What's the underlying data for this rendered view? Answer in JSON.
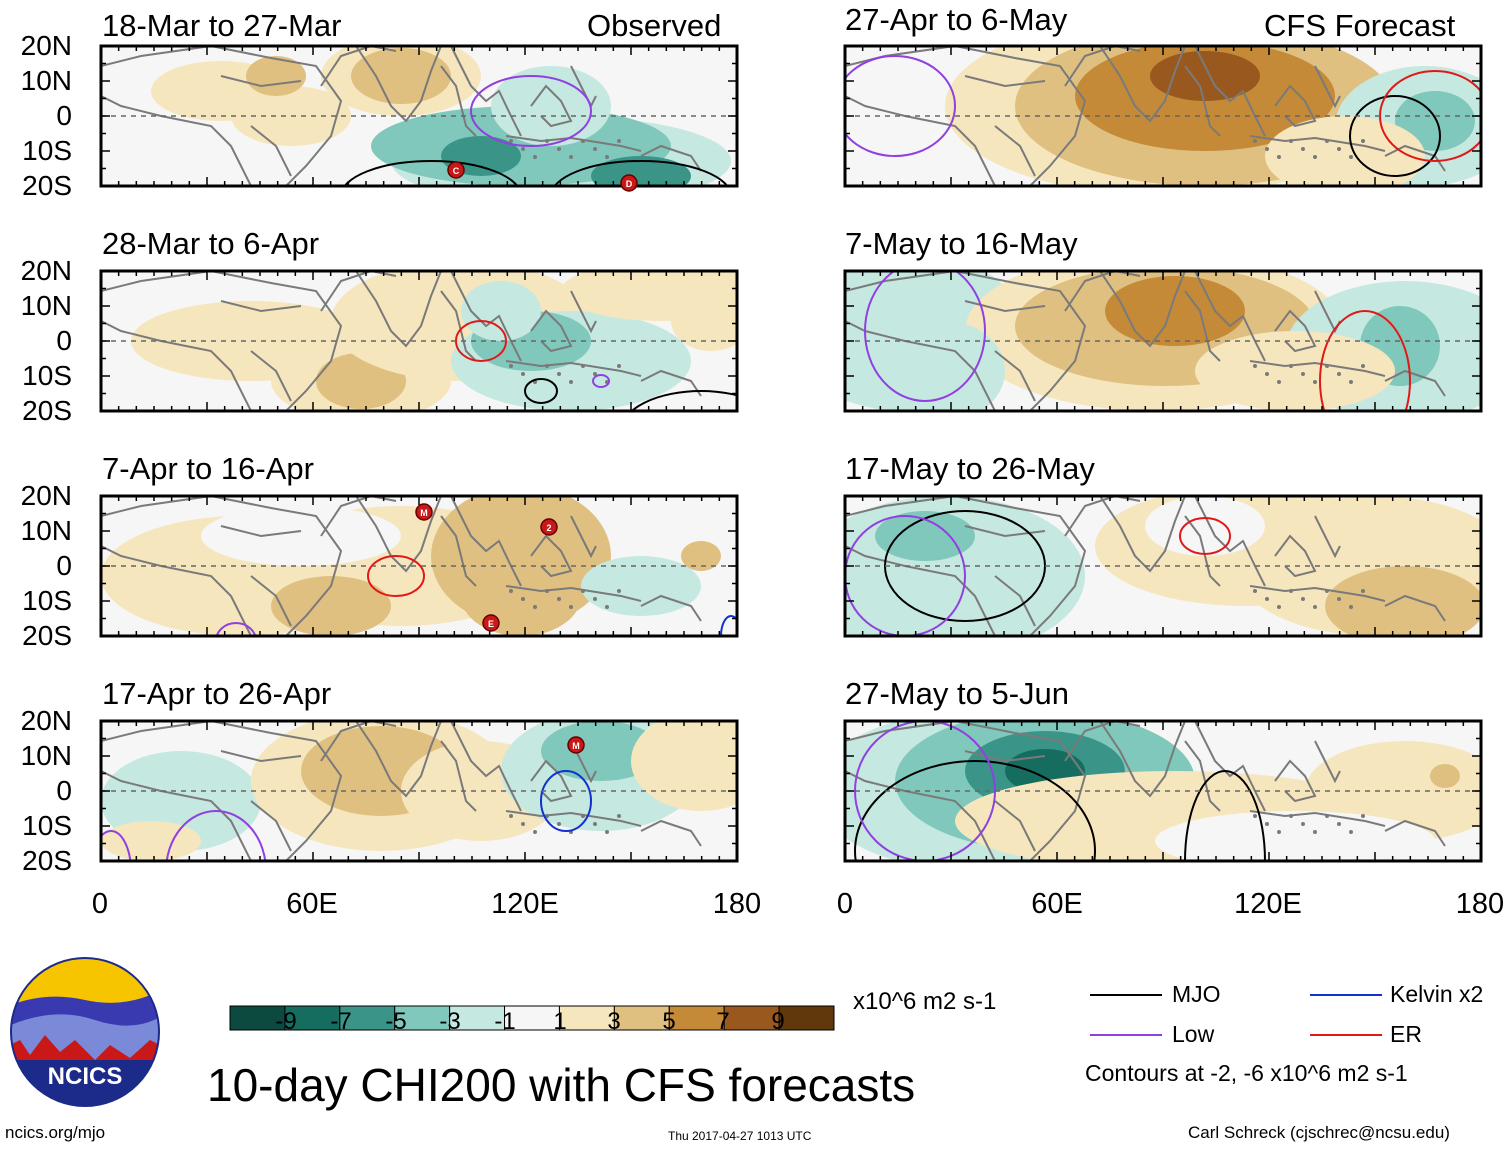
{
  "figure_title": "10-day CHI200 with CFS forecasts",
  "panel_headers": {
    "observed": "Observed",
    "forecast": "CFS Forecast"
  },
  "chart_data": {
    "type": "map",
    "variable": "CHI200 10-day mean",
    "units": "x10^6 m2 s-1",
    "lat_ticks": [
      "20N",
      "10N",
      "0",
      "10S",
      "20S"
    ],
    "lon_ticks": [
      "0",
      "60E",
      "120E",
      "180"
    ],
    "colorbar": {
      "labels": [
        "-9",
        "-7",
        "-5",
        "-3",
        "-1",
        "1",
        "3",
        "5",
        "7",
        "9"
      ],
      "colors": [
        "#0c4a40",
        "#156d60",
        "#3a9488",
        "#80c8bb",
        "#c5e8e1",
        "#f6f6f6",
        "#f6e6be",
        "#e0c080",
        "#c48a38",
        "#99581e",
        "#61380c"
      ]
    },
    "panels": [
      {
        "period": "18-Mar to 27-Mar",
        "source": "Observed"
      },
      {
        "period": "28-Mar to 6-Apr",
        "source": "Observed"
      },
      {
        "period": "7-Apr to 16-Apr",
        "source": "Observed"
      },
      {
        "period": "17-Apr to 26-Apr",
        "source": "Observed"
      },
      {
        "period": "27-Apr to 6-May",
        "source": "CFS Forecast"
      },
      {
        "period": "7-May to 16-May",
        "source": "CFS Forecast"
      },
      {
        "period": "17-May to 26-May",
        "source": "CFS Forecast"
      },
      {
        "period": "27-May to 5-Jun",
        "source": "CFS Forecast"
      }
    ],
    "legend": [
      {
        "label": "MJO",
        "color": "#000000"
      },
      {
        "label": "Kelvin x2",
        "color": "#1030d0"
      },
      {
        "label": "Low",
        "color": "#9040e0"
      },
      {
        "label": "ER",
        "color": "#e01818"
      }
    ],
    "contour_note": "Contours at -2, -6 x10^6 m2 s-1",
    "storm_markers": [
      "C",
      "D",
      "M",
      "2",
      "E",
      "M"
    ]
  },
  "footer": {
    "logo_text": "NCICS",
    "url": "ncics.org/mjo",
    "timestamp": "Thu 2017-04-27 1013 UTC",
    "credit": "Carl Schreck (cjschrec@ncsu.edu)"
  }
}
